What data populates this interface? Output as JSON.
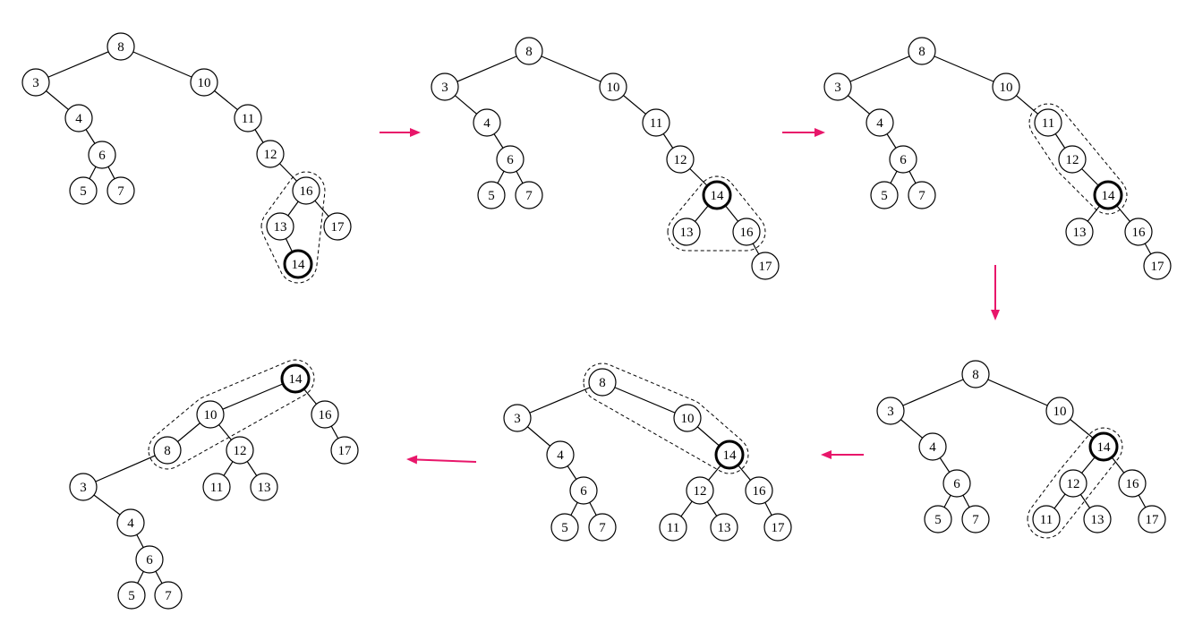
{
  "colors": {
    "node_stroke": "#000000",
    "node_fill": "#ffffff",
    "arrow": "#e8166a",
    "background": "#ffffff"
  },
  "diagrams": [
    {
      "id": "step-1",
      "highlight": "14",
      "nodes": [
        "8",
        "3",
        "4",
        "6",
        "5",
        "7",
        "10",
        "11",
        "12",
        "16",
        "13",
        "14",
        "17"
      ],
      "edges": [
        [
          "8",
          "3"
        ],
        [
          "8",
          "10"
        ],
        [
          "3",
          "4"
        ],
        [
          "4",
          "6"
        ],
        [
          "6",
          "5"
        ],
        [
          "6",
          "7"
        ],
        [
          "10",
          "11"
        ],
        [
          "11",
          "12"
        ],
        [
          "12",
          "16"
        ],
        [
          "16",
          "13"
        ],
        [
          "16",
          "17"
        ],
        [
          "13",
          "14"
        ]
      ],
      "group": [
        "16",
        "13",
        "14"
      ]
    },
    {
      "id": "step-2",
      "highlight": "14",
      "nodes": [
        "8",
        "3",
        "4",
        "6",
        "5",
        "7",
        "10",
        "11",
        "12",
        "14",
        "13",
        "16",
        "17"
      ],
      "edges": [
        [
          "8",
          "3"
        ],
        [
          "8",
          "10"
        ],
        [
          "3",
          "4"
        ],
        [
          "4",
          "6"
        ],
        [
          "6",
          "5"
        ],
        [
          "6",
          "7"
        ],
        [
          "10",
          "11"
        ],
        [
          "11",
          "12"
        ],
        [
          "12",
          "14"
        ],
        [
          "14",
          "13"
        ],
        [
          "14",
          "16"
        ],
        [
          "16",
          "17"
        ]
      ],
      "group": [
        "14",
        "13",
        "16"
      ]
    },
    {
      "id": "step-3",
      "highlight": "14",
      "nodes": [
        "8",
        "3",
        "4",
        "6",
        "5",
        "7",
        "10",
        "11",
        "12",
        "14",
        "13",
        "16",
        "17"
      ],
      "edges": [
        [
          "8",
          "3"
        ],
        [
          "8",
          "10"
        ],
        [
          "3",
          "4"
        ],
        [
          "4",
          "6"
        ],
        [
          "6",
          "5"
        ],
        [
          "6",
          "7"
        ],
        [
          "10",
          "11"
        ],
        [
          "11",
          "12"
        ],
        [
          "12",
          "14"
        ],
        [
          "14",
          "13"
        ],
        [
          "14",
          "16"
        ],
        [
          "16",
          "17"
        ]
      ],
      "group": [
        "11",
        "12",
        "14"
      ]
    },
    {
      "id": "step-4",
      "highlight": "14",
      "nodes": [
        "8",
        "3",
        "4",
        "6",
        "5",
        "7",
        "10",
        "14",
        "12",
        "11",
        "13",
        "16",
        "17"
      ],
      "edges": [
        [
          "8",
          "3"
        ],
        [
          "8",
          "10"
        ],
        [
          "3",
          "4"
        ],
        [
          "4",
          "6"
        ],
        [
          "6",
          "5"
        ],
        [
          "6",
          "7"
        ],
        [
          "10",
          "14"
        ],
        [
          "14",
          "12"
        ],
        [
          "14",
          "16"
        ],
        [
          "12",
          "11"
        ],
        [
          "12",
          "13"
        ],
        [
          "16",
          "17"
        ]
      ],
      "group": [
        "14",
        "12",
        "11"
      ]
    },
    {
      "id": "step-5",
      "highlight": "14",
      "nodes": [
        "8",
        "3",
        "4",
        "6",
        "5",
        "7",
        "10",
        "14",
        "12",
        "11",
        "13",
        "16",
        "17"
      ],
      "edges": [
        [
          "8",
          "3"
        ],
        [
          "8",
          "10"
        ],
        [
          "3",
          "4"
        ],
        [
          "4",
          "6"
        ],
        [
          "6",
          "5"
        ],
        [
          "6",
          "7"
        ],
        [
          "10",
          "14"
        ],
        [
          "14",
          "12"
        ],
        [
          "14",
          "16"
        ],
        [
          "12",
          "11"
        ],
        [
          "12",
          "13"
        ],
        [
          "16",
          "17"
        ]
      ],
      "group": [
        "8",
        "10",
        "14"
      ]
    },
    {
      "id": "step-6",
      "highlight": "14",
      "nodes": [
        "14",
        "10",
        "16",
        "8",
        "12",
        "17",
        "3",
        "11",
        "13",
        "4",
        "6",
        "5",
        "7"
      ],
      "edges": [
        [
          "14",
          "10"
        ],
        [
          "14",
          "16"
        ],
        [
          "10",
          "8"
        ],
        [
          "10",
          "12"
        ],
        [
          "16",
          "17"
        ],
        [
          "8",
          "3"
        ],
        [
          "12",
          "11"
        ],
        [
          "12",
          "13"
        ],
        [
          "3",
          "4"
        ],
        [
          "4",
          "6"
        ],
        [
          "6",
          "5"
        ],
        [
          "6",
          "7"
        ]
      ],
      "group": [
        "14",
        "10",
        "8"
      ]
    }
  ],
  "arrows": [
    "right",
    "right",
    "down",
    "left",
    "left"
  ]
}
